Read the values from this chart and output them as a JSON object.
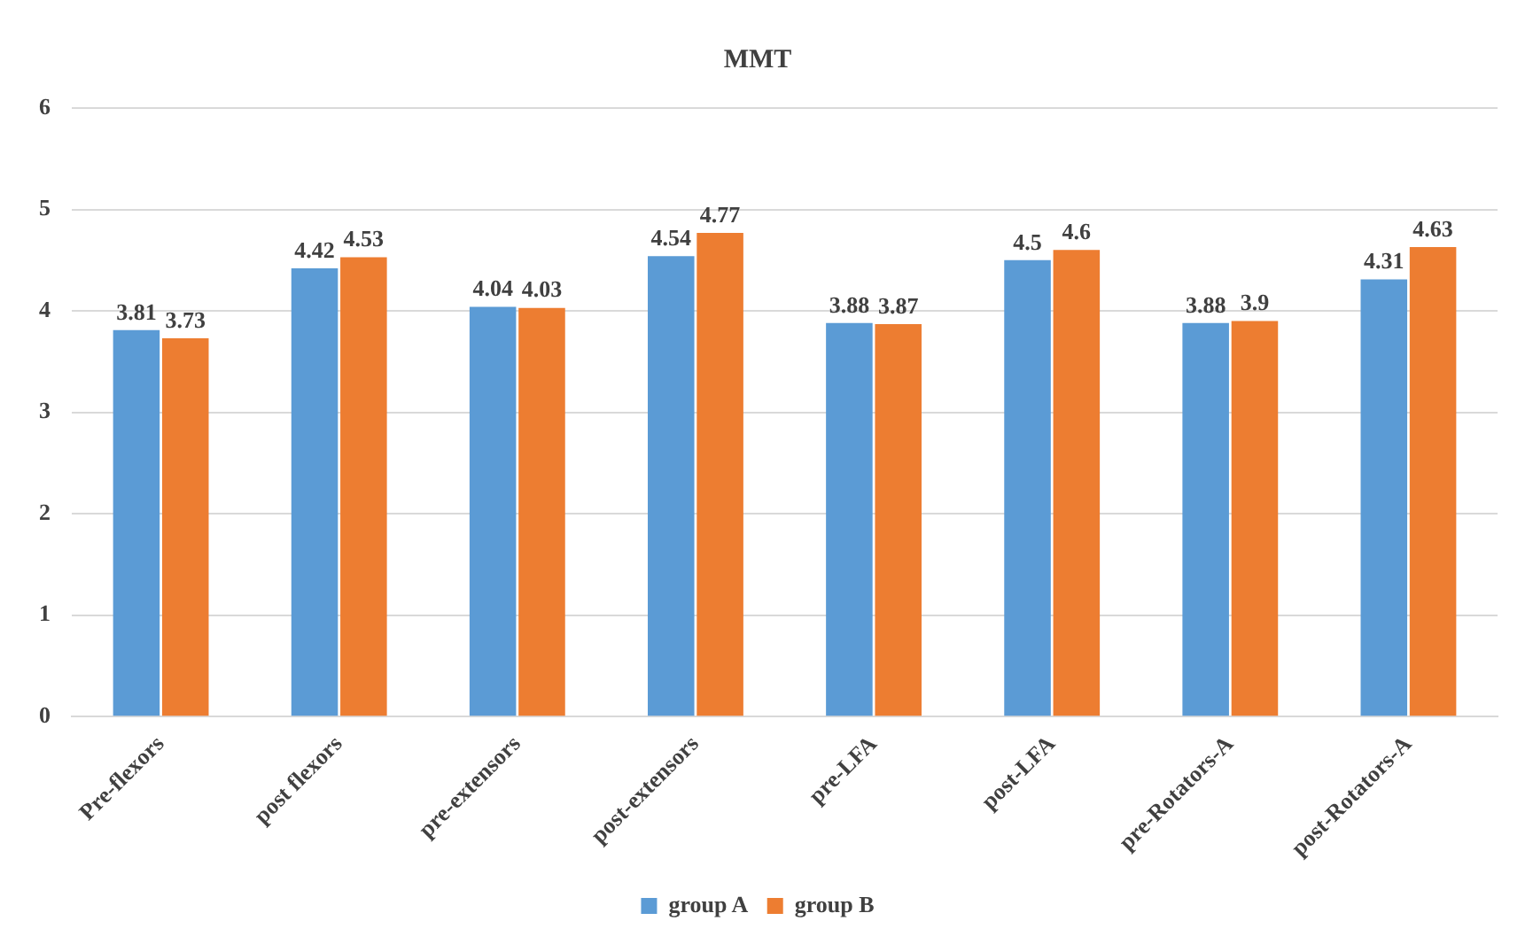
{
  "chart_data": {
    "type": "bar",
    "title": "MMT",
    "categories": [
      "Pre-flexors",
      "post flexors",
      "pre-extensors",
      "post-extensors",
      "pre-LFA",
      "post-LFA",
      "pre-Rotators-A",
      "post-Rotators-A"
    ],
    "series": [
      {
        "name": "group A",
        "color": "#5b9bd5",
        "values": [
          3.81,
          4.42,
          4.04,
          4.54,
          3.88,
          4.5,
          3.88,
          4.31
        ]
      },
      {
        "name": "group B",
        "color": "#ed7d31",
        "values": [
          3.73,
          4.53,
          4.03,
          4.77,
          3.87,
          4.6,
          3.9,
          4.63
        ]
      }
    ],
    "ylim": [
      0,
      6
    ],
    "yticks": [
      0,
      1,
      2,
      3,
      4,
      5,
      6
    ],
    "grid": "y",
    "legend": "bottom",
    "data_labels": true
  }
}
